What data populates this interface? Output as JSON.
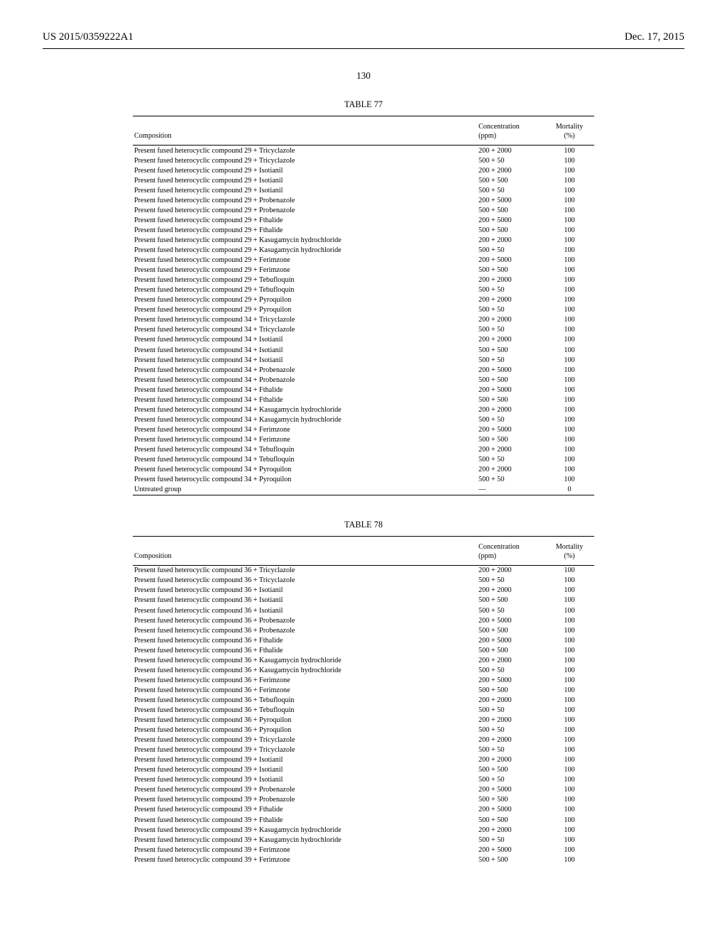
{
  "header": {
    "left": "US 2015/0359222A1",
    "right": "Dec. 17, 2015"
  },
  "page_number": "130",
  "tables": [
    {
      "title": "TABLE 77",
      "columns": {
        "c1": "Composition",
        "c2": "Concentration\n(ppm)",
        "c3": "Mortality\n(%)"
      },
      "rows": [
        [
          "Present fused heterocyclic compound 29 + Tricyclazole",
          "200 + 2000",
          "100"
        ],
        [
          "Present fused heterocyclic compound 29 + Tricyclazole",
          "500 + 50",
          "100"
        ],
        [
          "Present fused heterocyclic compound 29 + Isotianil",
          "200 + 2000",
          "100"
        ],
        [
          "Present fused heterocyclic compound 29 + Isotianil",
          "500 + 500",
          "100"
        ],
        [
          "Present fused heterocyclic compound 29 + Isotianil",
          "500 + 50",
          "100"
        ],
        [
          "Present fused heterocyclic compound 29 + Probenazole",
          "200 + 5000",
          "100"
        ],
        [
          "Present fused heterocyclic compound 29 + Probenazole",
          "500 + 500",
          "100"
        ],
        [
          "Present fused heterocyclic compound 29 + Fthalide",
          "200 + 5000",
          "100"
        ],
        [
          "Present fused heterocyclic compound 29 + Fthalide",
          "500 + 500",
          "100"
        ],
        [
          "Present fused heterocyclic compound 29 + Kasugamycin hydrochloride",
          "200 + 2000",
          "100"
        ],
        [
          "Present fused heterocyclic compound 29 + Kasugamycin hydrochloride",
          "500 + 50",
          "100"
        ],
        [
          "Present fused heterocyclic compound 29 + Ferimzone",
          "200 + 5000",
          "100"
        ],
        [
          "Present fused heterocyclic compound 29 + Ferimzone",
          "500 + 500",
          "100"
        ],
        [
          "Present fused heterocyclic compound 29 + Tebufloquin",
          "200 + 2000",
          "100"
        ],
        [
          "Present fused heterocyclic compound 29 + Tebufloquin",
          "500 + 50",
          "100"
        ],
        [
          "Present fused heterocyclic compound 29 + Pyroquilon",
          "200 + 2000",
          "100"
        ],
        [
          "Present fused heterocyclic compound 29 + Pyroquilon",
          "500 + 50",
          "100"
        ],
        [
          "Present fused heterocyclic compound 34 + Tricyclazole",
          "200 + 2000",
          "100"
        ],
        [
          "Present fused heterocyclic compound 34 + Tricyclazole",
          "500 + 50",
          "100"
        ],
        [
          "Present fused heterocyclic compound 34 + Isotianil",
          "200 + 2000",
          "100"
        ],
        [
          "Present fused heterocyclic compound 34 + Isotianil",
          "500 + 500",
          "100"
        ],
        [
          "Present fused heterocyclic compound 34 + Isotianil",
          "500 + 50",
          "100"
        ],
        [
          "Present fused heterocyclic compound 34 + Probenazole",
          "200 + 5000",
          "100"
        ],
        [
          "Present fused heterocyclic compound 34 + Probenazole",
          "500 + 500",
          "100"
        ],
        [
          "Present fused heterocyclic compound 34 + Fthalide",
          "200 + 5000",
          "100"
        ],
        [
          "Present fused heterocyclic compound 34 + Fthalide",
          "500 + 500",
          "100"
        ],
        [
          "Present fused heterocyclic compound 34 + Kasugamycin hydrochloride",
          "200 + 2000",
          "100"
        ],
        [
          "Present fused heterocyclic compound 34 + Kasugamycin hydrochloride",
          "500 + 50",
          "100"
        ],
        [
          "Present fused heterocyclic compound 34 + Ferimzone",
          "200 + 5000",
          "100"
        ],
        [
          "Present fused heterocyclic compound 34 + Ferimzone",
          "500 + 500",
          "100"
        ],
        [
          "Present fused heterocyclic compound 34 + Tebufloquin",
          "200 + 2000",
          "100"
        ],
        [
          "Present fused heterocyclic compound 34 + Tebufloquin",
          "500 + 50",
          "100"
        ],
        [
          "Present fused heterocyclic compound 34 + Pyroquilon",
          "200 + 2000",
          "100"
        ],
        [
          "Present fused heterocyclic compound 34 + Pyroquilon",
          "500 + 50",
          "100"
        ],
        [
          "Untreated group",
          "—",
          "0"
        ]
      ]
    },
    {
      "title": "TABLE 78",
      "columns": {
        "c1": "Composition",
        "c2": "Concentration\n(ppm)",
        "c3": "Mortality\n(%)"
      },
      "rows": [
        [
          "Present fused heterocyclic compound 36 + Tricyclazole",
          "200 + 2000",
          "100"
        ],
        [
          "Present fused heterocyclic compound 36 + Tricyclazole",
          "500 + 50",
          "100"
        ],
        [
          "Present fused heterocyclic compound 36 + Isotianil",
          "200 + 2000",
          "100"
        ],
        [
          "Present fused heterocyclic compound 36 + Isotianil",
          "500 + 500",
          "100"
        ],
        [
          "Present fused heterocyclic compound 36 + Isotianil",
          "500 + 50",
          "100"
        ],
        [
          "Present fused heterocyclic compound 36 + Probenazole",
          "200 + 5000",
          "100"
        ],
        [
          "Present fused heterocyclic compound 36 + Probenazole",
          "500 + 500",
          "100"
        ],
        [
          "Present fused heterocyclic compound 36 + Fthalide",
          "200 + 5000",
          "100"
        ],
        [
          "Present fused heterocyclic compound 36 + Fthalide",
          "500 + 500",
          "100"
        ],
        [
          "Present fused heterocyclic compound 36 + Kasugamycin hydrochloride",
          "200 + 2000",
          "100"
        ],
        [
          "Present fused heterocyclic compound 36 + Kasugamycin hydrochloride",
          "500 + 50",
          "100"
        ],
        [
          "Present fused heterocyclic compound 36 + Ferimzone",
          "200 + 5000",
          "100"
        ],
        [
          "Present fused heterocyclic compound 36 + Ferimzone",
          "500 + 500",
          "100"
        ],
        [
          "Present fused heterocyclic compound 36 + Tebufloquin",
          "200 + 2000",
          "100"
        ],
        [
          "Present fused heterocyclic compound 36 + Tebufloquin",
          "500 + 50",
          "100"
        ],
        [
          "Present fused heterocyclic compound 36 + Pyroquilon",
          "200 + 2000",
          "100"
        ],
        [
          "Present fused heterocyclic compound 36 + Pyroquilon",
          "500 + 50",
          "100"
        ],
        [
          "Present fused heterocyclic compound 39 + Tricyclazole",
          "200 + 2000",
          "100"
        ],
        [
          "Present fused heterocyclic compound 39 + Tricyclazole",
          "500 + 50",
          "100"
        ],
        [
          "Present fused heterocyclic compound 39 + Isotianil",
          "200 + 2000",
          "100"
        ],
        [
          "Present fused heterocyclic compound 39 + Isotianil",
          "500 + 500",
          "100"
        ],
        [
          "Present fused heterocyclic compound 39 + Isotianil",
          "500 + 50",
          "100"
        ],
        [
          "Present fused heterocyclic compound 39 + Probenazole",
          "200 + 5000",
          "100"
        ],
        [
          "Present fused heterocyclic compound 39 + Probenazole",
          "500 + 500",
          "100"
        ],
        [
          "Present fused heterocyclic compound 39 + Fthalide",
          "200 + 5000",
          "100"
        ],
        [
          "Present fused heterocyclic compound 39 + Fthalide",
          "500 + 500",
          "100"
        ],
        [
          "Present fused heterocyclic compound 39 + Kasugamycin hydrochloride",
          "200 + 2000",
          "100"
        ],
        [
          "Present fused heterocyclic compound 39 + Kasugamycin hydrochloride",
          "500 + 50",
          "100"
        ],
        [
          "Present fused heterocyclic compound 39 + Ferimzone",
          "200 + 5000",
          "100"
        ],
        [
          "Present fused heterocyclic compound 39 + Ferimzone",
          "500 + 500",
          "100"
        ]
      ]
    }
  ]
}
